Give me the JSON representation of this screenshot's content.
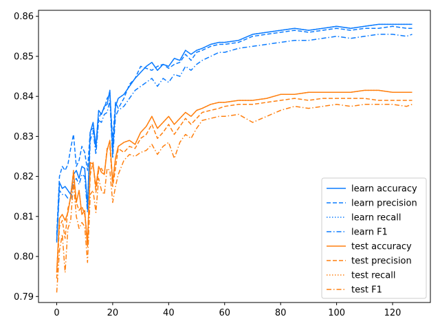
{
  "chart_data": {
    "type": "line",
    "title": "",
    "xlabel": "",
    "ylabel": "",
    "xlim": [
      -6.5,
      133.5
    ],
    "ylim": [
      0.7885,
      0.8615
    ],
    "xticks": [
      0,
      20,
      40,
      60,
      80,
      100,
      120
    ],
    "xtick_labels": [
      "0",
      "20",
      "40",
      "60",
      "80",
      "100",
      "120"
    ],
    "yticks": [
      0.79,
      0.8,
      0.81,
      0.82,
      0.83,
      0.84,
      0.85,
      0.86
    ],
    "ytick_labels": [
      "0.79",
      "0.80",
      "0.81",
      "0.82",
      "0.83",
      "0.84",
      "0.85",
      "0.86"
    ],
    "grid": false,
    "legend_position": "lower-right",
    "colors": {
      "learn": "#1f77ff",
      "test": "#ff7f0e"
    },
    "series": [
      {
        "name": "learn accuracy",
        "color": "#0a7bff",
        "linestyle": "solid",
        "x": [
          0,
          1,
          2,
          3,
          4,
          5,
          6,
          7,
          8,
          9,
          10,
          11,
          12,
          13,
          14,
          15,
          16,
          17,
          18,
          19,
          20,
          21,
          22,
          24,
          26,
          28,
          30,
          32,
          34,
          36,
          38,
          40,
          42,
          44,
          46,
          48,
          50,
          52,
          55,
          58,
          60,
          65,
          70,
          75,
          80,
          85,
          90,
          95,
          100,
          105,
          110,
          115,
          120,
          125,
          127
        ],
        "y": [
          0.804,
          0.8185,
          0.817,
          0.8175,
          0.8165,
          0.8155,
          0.8205,
          0.8215,
          0.8195,
          0.8225,
          0.822,
          0.8125,
          0.831,
          0.8335,
          0.8275,
          0.8365,
          0.8355,
          0.8375,
          0.838,
          0.8415,
          0.826,
          0.8375,
          0.8395,
          0.8405,
          0.8425,
          0.8445,
          0.846,
          0.8475,
          0.8485,
          0.8465,
          0.848,
          0.8475,
          0.8495,
          0.849,
          0.8515,
          0.8505,
          0.8515,
          0.852,
          0.853,
          0.8535,
          0.8535,
          0.854,
          0.8555,
          0.856,
          0.8565,
          0.857,
          0.8565,
          0.857,
          0.8575,
          0.857,
          0.8575,
          0.858,
          0.858,
          0.858,
          0.858
        ]
      },
      {
        "name": "learn precision",
        "color": "#0a7bff",
        "linestyle": "dashed",
        "x": [
          0,
          1,
          2,
          3,
          4,
          5,
          6,
          7,
          8,
          9,
          10,
          11,
          12,
          13,
          14,
          15,
          16,
          17,
          18,
          19,
          20,
          21,
          22,
          24,
          26,
          28,
          30,
          32,
          34,
          36,
          38,
          40,
          42,
          44,
          46,
          48,
          50,
          52,
          55,
          58,
          60,
          65,
          70,
          75,
          80,
          85,
          90,
          95,
          100,
          105,
          110,
          115,
          120,
          125,
          127
        ],
        "y": [
          0.8055,
          0.82,
          0.8225,
          0.8215,
          0.823,
          0.827,
          0.8305,
          0.8225,
          0.824,
          0.8275,
          0.826,
          0.8215,
          0.8315,
          0.832,
          0.827,
          0.8345,
          0.836,
          0.837,
          0.8395,
          0.8405,
          0.829,
          0.8385,
          0.837,
          0.8395,
          0.843,
          0.8445,
          0.8475,
          0.847,
          0.8465,
          0.8475,
          0.848,
          0.847,
          0.848,
          0.8485,
          0.8505,
          0.849,
          0.851,
          0.8515,
          0.8525,
          0.853,
          0.853,
          0.8535,
          0.855,
          0.8555,
          0.856,
          0.8565,
          0.856,
          0.8565,
          0.857,
          0.8565,
          0.857,
          0.857,
          0.8575,
          0.857,
          0.857
        ]
      },
      {
        "name": "learn recall",
        "color": "#0a7bff",
        "linestyle": "dotted",
        "x": [
          0,
          1,
          2,
          3,
          4,
          5,
          6,
          7,
          8,
          9,
          10,
          11,
          12,
          13,
          14,
          15,
          16,
          17,
          18,
          19,
          20,
          21,
          22,
          24,
          26,
          28,
          30,
          32,
          34,
          36,
          38,
          40,
          42,
          44,
          46,
          48,
          50,
          52,
          55,
          58,
          60,
          65,
          70,
          75,
          80,
          85,
          90,
          95,
          100,
          105,
          110,
          115,
          120,
          125,
          127
        ],
        "y": [
          0.804,
          0.8185,
          0.817,
          0.8175,
          0.8165,
          0.8155,
          0.8205,
          0.8215,
          0.8195,
          0.8225,
          0.822,
          0.8125,
          0.831,
          0.8335,
          0.8275,
          0.8365,
          0.8355,
          0.8375,
          0.838,
          0.8415,
          0.826,
          0.8375,
          0.8395,
          0.8405,
          0.8425,
          0.8445,
          0.846,
          0.8475,
          0.8485,
          0.8465,
          0.848,
          0.8475,
          0.8495,
          0.849,
          0.8515,
          0.8505,
          0.8515,
          0.852,
          0.853,
          0.8535,
          0.8535,
          0.854,
          0.8555,
          0.856,
          0.8565,
          0.857,
          0.8565,
          0.857,
          0.8575,
          0.857,
          0.8575,
          0.858,
          0.858,
          0.858,
          0.858
        ]
      },
      {
        "name": "learn F1",
        "color": "#0a7bff",
        "linestyle": "dashdot",
        "x": [
          0,
          1,
          2,
          3,
          4,
          5,
          6,
          7,
          8,
          9,
          10,
          11,
          12,
          13,
          14,
          15,
          16,
          17,
          18,
          19,
          20,
          21,
          22,
          24,
          26,
          28,
          30,
          32,
          34,
          36,
          38,
          40,
          42,
          44,
          46,
          48,
          50,
          52,
          55,
          58,
          60,
          65,
          70,
          75,
          80,
          85,
          90,
          95,
          100,
          105,
          110,
          115,
          120,
          125,
          127
        ],
        "y": [
          0.8035,
          0.8165,
          0.8155,
          0.8155,
          0.8145,
          0.814,
          0.8185,
          0.8195,
          0.818,
          0.8205,
          0.82,
          0.811,
          0.829,
          0.8315,
          0.8255,
          0.834,
          0.8335,
          0.8355,
          0.836,
          0.839,
          0.8245,
          0.835,
          0.8365,
          0.8375,
          0.8395,
          0.8415,
          0.8425,
          0.8435,
          0.8445,
          0.8425,
          0.8445,
          0.8435,
          0.8455,
          0.845,
          0.8475,
          0.8465,
          0.848,
          0.849,
          0.85,
          0.851,
          0.851,
          0.852,
          0.8525,
          0.853,
          0.8535,
          0.854,
          0.854,
          0.8545,
          0.855,
          0.8545,
          0.855,
          0.8555,
          0.8555,
          0.855,
          0.8555
        ]
      },
      {
        "name": "test accuracy",
        "color": "#ff7f0e",
        "linestyle": "solid",
        "x": [
          0,
          1,
          2,
          3,
          4,
          5,
          6,
          7,
          8,
          9,
          10,
          11,
          12,
          13,
          14,
          15,
          16,
          17,
          18,
          19,
          20,
          21,
          22,
          24,
          26,
          28,
          30,
          32,
          34,
          36,
          38,
          40,
          42,
          44,
          46,
          48,
          50,
          52,
          55,
          58,
          60,
          65,
          70,
          75,
          80,
          85,
          90,
          95,
          100,
          105,
          110,
          115,
          120,
          125,
          127
        ],
        "y": [
          0.796,
          0.8095,
          0.8105,
          0.809,
          0.811,
          0.815,
          0.821,
          0.8135,
          0.8165,
          0.8105,
          0.8115,
          0.8025,
          0.8235,
          0.823,
          0.8175,
          0.8225,
          0.821,
          0.8205,
          0.8265,
          0.829,
          0.8185,
          0.8245,
          0.8275,
          0.8285,
          0.829,
          0.828,
          0.831,
          0.8325,
          0.835,
          0.832,
          0.8335,
          0.835,
          0.833,
          0.8345,
          0.836,
          0.835,
          0.8365,
          0.837,
          0.838,
          0.8385,
          0.8385,
          0.839,
          0.839,
          0.8395,
          0.8405,
          0.8405,
          0.841,
          0.841,
          0.841,
          0.841,
          0.8415,
          0.8415,
          0.841,
          0.841,
          0.841
        ]
      },
      {
        "name": "test precision",
        "color": "#ff7f0e",
        "linestyle": "dashed",
        "x": [
          0,
          1,
          2,
          3,
          4,
          5,
          6,
          7,
          8,
          9,
          10,
          11,
          12,
          13,
          14,
          15,
          16,
          17,
          18,
          19,
          20,
          21,
          22,
          24,
          26,
          28,
          30,
          32,
          34,
          36,
          38,
          40,
          42,
          44,
          46,
          48,
          50,
          52,
          55,
          58,
          60,
          65,
          70,
          75,
          80,
          85,
          90,
          95,
          100,
          105,
          110,
          115,
          120,
          125,
          127
        ],
        "y": [
          0.7945,
          0.8075,
          0.809,
          0.8045,
          0.812,
          0.8145,
          0.8215,
          0.8135,
          0.8115,
          0.8125,
          0.8105,
          0.804,
          0.8205,
          0.8235,
          0.816,
          0.8215,
          0.822,
          0.8205,
          0.827,
          0.8275,
          0.8175,
          0.822,
          0.827,
          0.826,
          0.8275,
          0.827,
          0.8295,
          0.8305,
          0.833,
          0.8295,
          0.831,
          0.833,
          0.8305,
          0.8325,
          0.8345,
          0.833,
          0.8345,
          0.836,
          0.8365,
          0.837,
          0.8375,
          0.838,
          0.838,
          0.8385,
          0.839,
          0.8395,
          0.839,
          0.8395,
          0.8395,
          0.8395,
          0.8395,
          0.839,
          0.839,
          0.839,
          0.839
        ]
      },
      {
        "name": "test recall",
        "color": "#ff7f0e",
        "linestyle": "dotted",
        "x": [
          0,
          1,
          2,
          3,
          4,
          5,
          6,
          7,
          8,
          9,
          10,
          11,
          12,
          13,
          14,
          15,
          16,
          17,
          18,
          19,
          20,
          21,
          22,
          24,
          26,
          28,
          30,
          32,
          34,
          36,
          38,
          40,
          42,
          44,
          46,
          48,
          50,
          52,
          55,
          58,
          60,
          65,
          70,
          75,
          80,
          85,
          90,
          95,
          100,
          105,
          110,
          115,
          120,
          125,
          127
        ],
        "y": [
          0.796,
          0.8095,
          0.8105,
          0.809,
          0.811,
          0.815,
          0.821,
          0.8135,
          0.8165,
          0.8105,
          0.8115,
          0.8025,
          0.8235,
          0.823,
          0.8175,
          0.8225,
          0.821,
          0.8205,
          0.8265,
          0.829,
          0.8185,
          0.8245,
          0.8275,
          0.8285,
          0.829,
          0.828,
          0.831,
          0.8325,
          0.835,
          0.832,
          0.8335,
          0.835,
          0.833,
          0.8345,
          0.836,
          0.835,
          0.8365,
          0.837,
          0.838,
          0.8385,
          0.8385,
          0.839,
          0.839,
          0.8395,
          0.8405,
          0.8405,
          0.841,
          0.841,
          0.841,
          0.841,
          0.8415,
          0.8415,
          0.841,
          0.841,
          0.841
        ]
      },
      {
        "name": "test F1",
        "color": "#ff7f0e",
        "linestyle": "dashdot",
        "x": [
          0,
          1,
          2,
          3,
          4,
          5,
          6,
          7,
          8,
          9,
          10,
          11,
          12,
          13,
          14,
          15,
          16,
          17,
          18,
          19,
          20,
          21,
          22,
          24,
          26,
          28,
          30,
          32,
          34,
          36,
          38,
          40,
          42,
          44,
          46,
          48,
          50,
          52,
          55,
          58,
          60,
          65,
          70,
          75,
          80,
          85,
          90,
          95,
          100,
          105,
          110,
          115,
          120,
          125,
          127
        ],
        "y": [
          0.791,
          0.8015,
          0.8055,
          0.796,
          0.807,
          0.809,
          0.8185,
          0.81,
          0.807,
          0.8085,
          0.8075,
          0.7985,
          0.8155,
          0.8165,
          0.811,
          0.8195,
          0.8165,
          0.8155,
          0.822,
          0.8215,
          0.8135,
          0.8175,
          0.8205,
          0.824,
          0.8255,
          0.825,
          0.826,
          0.8265,
          0.828,
          0.8255,
          0.8275,
          0.8285,
          0.8245,
          0.8285,
          0.8305,
          0.8295,
          0.832,
          0.834,
          0.8345,
          0.835,
          0.835,
          0.8355,
          0.8335,
          0.835,
          0.8365,
          0.8375,
          0.837,
          0.8375,
          0.838,
          0.8375,
          0.838,
          0.838,
          0.838,
          0.8375,
          0.838
        ]
      }
    ]
  }
}
